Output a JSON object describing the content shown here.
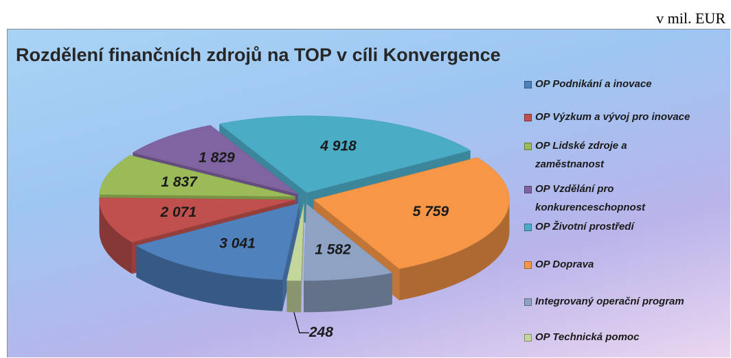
{
  "chart_data": {
    "type": "pie",
    "title": "Rozdělení finančních zdrojů na TOP v cíli Konvergence",
    "unit_note": "v mil. EUR",
    "categories": [
      "OP Podnikání a inovace",
      "OP Výzkum a vývoj pro inovace",
      "OP Lidské zdroje a zaměstnanost",
      "OP Vzdělání pro konkurenceschopnost",
      "OP Životní prostředí",
      "OP Doprava",
      "Integrovaný operační program",
      "OP Technická pomoc"
    ],
    "values": [
      3041,
      2071,
      1837,
      1829,
      4918,
      5759,
      1582,
      248
    ],
    "value_labels": [
      "3 041",
      "2 071",
      "1 837",
      "1 829",
      "4 918",
      "5 759",
      "1 582",
      "248"
    ],
    "colors": [
      "#4f81bd",
      "#c0504d",
      "#9bbb59",
      "#8064a2",
      "#4bacc6",
      "#f79646",
      "#8ea2c4",
      "#c3d69b"
    ],
    "legend": "right"
  }
}
